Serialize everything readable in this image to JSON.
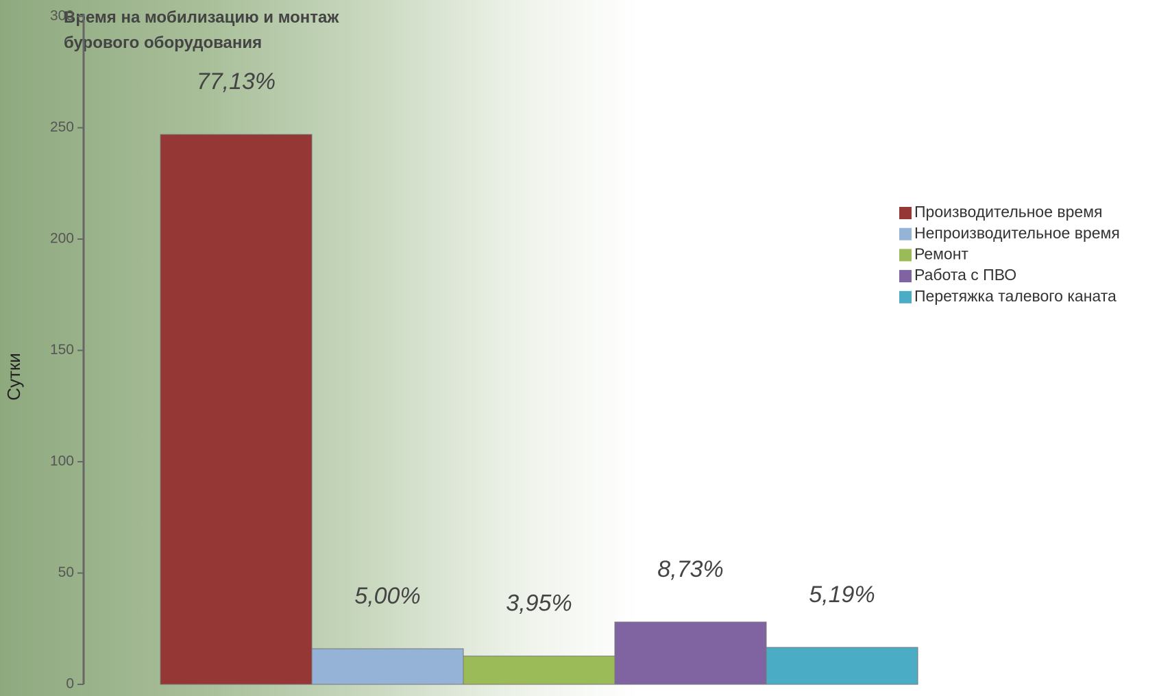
{
  "chart_data": {
    "type": "bar",
    "title": "Время на мобилизацию и монтаж бурового оборудования",
    "ylabel": "Сутки",
    "ylim": [
      0,
      300
    ],
    "yticks": [
      0,
      50,
      100,
      150,
      200,
      250,
      300
    ],
    "legend": "right",
    "series": [
      {
        "name": "Производительное время",
        "color": "#953735",
        "values": [
          247
        ],
        "label": "77,13%"
      },
      {
        "name": "Непроизводительное время",
        "color": "#95b3d7",
        "values": [
          16
        ],
        "label": "5,00%"
      },
      {
        "name": "Ремонт",
        "color": "#9bbb59",
        "values": [
          12.7
        ],
        "label": "3,95%"
      },
      {
        "name": "Работа с ПВО",
        "color": "#8064a2",
        "values": [
          28
        ],
        "label": "8,73%"
      },
      {
        "name": "Перетяжка талевого каната",
        "color": "#4bacc6",
        "values": [
          16.6
        ],
        "label": "5,19%"
      }
    ]
  }
}
